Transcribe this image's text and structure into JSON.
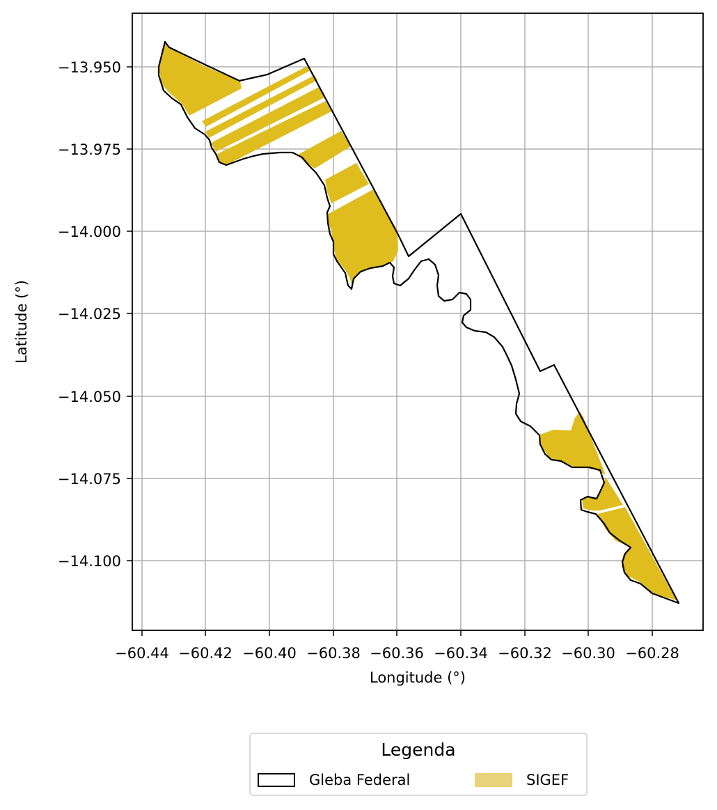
{
  "map": {
    "xlabel": "Longitude (°)",
    "ylabel": "Latitude (°)",
    "x_ticks": [
      "−60.44",
      "−60.42",
      "−60.40",
      "−60.38",
      "−60.36",
      "−60.34",
      "−60.32",
      "−60.30",
      "−60.28"
    ],
    "y_ticks": [
      "−13.950",
      "−13.975",
      "−14.000",
      "−14.025",
      "−14.050",
      "−14.075",
      "−14.100"
    ],
    "x_range": [
      -60.443,
      -60.265
    ],
    "y_range": [
      -14.122,
      -13.934
    ],
    "grid": true
  },
  "legend": {
    "title": "Legenda",
    "items": [
      {
        "label": "Gleba Federal",
        "style": "outline",
        "color": "#000000"
      },
      {
        "label": "SIGEF",
        "style": "fill",
        "color": "#e8d27a"
      }
    ]
  },
  "colors": {
    "sigef_fill": "#dfbd1f",
    "gleba_outline": "#000000",
    "grid": "#b0b0b0"
  }
}
